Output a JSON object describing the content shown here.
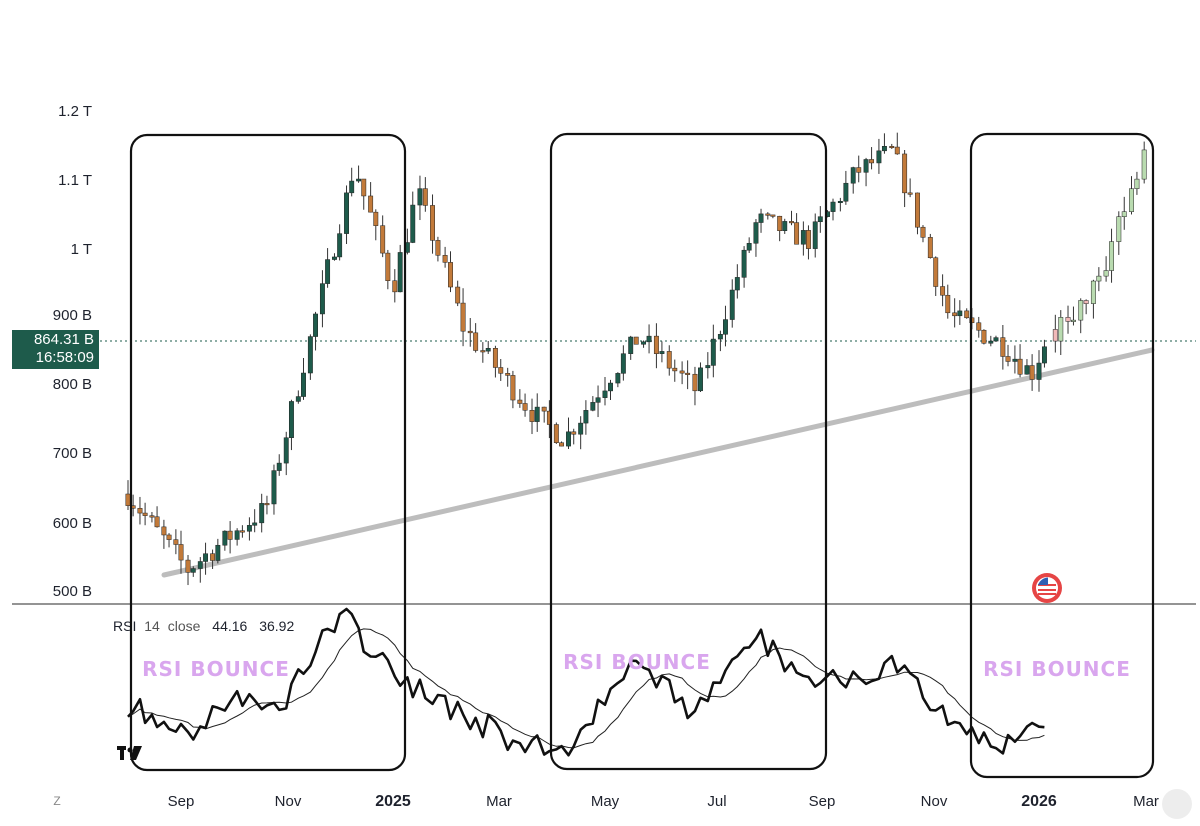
{
  "chart_data": [
    {
      "type": "candlestick",
      "symbol_price": "864.31 B",
      "countdown": "16:58:09",
      "y_ticks": [
        "500 B",
        "600 B",
        "700 B",
        "800 B",
        "900 B",
        "1 T",
        "1.1 T",
        "1.2 T"
      ],
      "y_tick_values": [
        500,
        600,
        700,
        800,
        900,
        1000,
        1100,
        1200
      ],
      "y_unit_note": "values in billions",
      "ylim": [
        500,
        1200
      ],
      "x_ticks": [
        "Sep",
        "Nov",
        "2025",
        "Mar",
        "May",
        "Jul",
        "Sep",
        "Nov",
        "2026",
        "Mar"
      ],
      "x_ticks_bold": [
        false,
        false,
        true,
        false,
        false,
        false,
        false,
        false,
        true,
        false
      ],
      "current_price": 864.31,
      "key_points": [
        {
          "date": "2024-08",
          "value": 640
        },
        {
          "date": "2024-09-05",
          "value": 530
        },
        {
          "date": "2024-10-20",
          "value": 620
        },
        {
          "date": "2024-12-10",
          "value": 1120
        },
        {
          "date": "2025-01-01",
          "value": 940
        },
        {
          "date": "2025-01-15",
          "value": 1080
        },
        {
          "date": "2025-02-10",
          "value": 880
        },
        {
          "date": "2025-03-20",
          "value": 760
        },
        {
          "date": "2025-04-08",
          "value": 720
        },
        {
          "date": "2025-05-20",
          "value": 870
        },
        {
          "date": "2025-06-20",
          "value": 790
        },
        {
          "date": "2025-07-25",
          "value": 1040
        },
        {
          "date": "2025-08-25",
          "value": 1010
        },
        {
          "date": "2025-09-20",
          "value": 1110
        },
        {
          "date": "2025-10-10",
          "value": 1140
        },
        {
          "date": "2025-11-10",
          "value": 900
        },
        {
          "date": "2025-12-10",
          "value": 860
        },
        {
          "date": "2025-12-28",
          "value": 815
        },
        {
          "date": "2026-01-05",
          "value": 864
        }
      ],
      "projection_points": [
        {
          "date": "2026-01-10",
          "value": 880
        },
        {
          "date": "2026-02-01",
          "value": 940
        },
        {
          "date": "2026-03-01",
          "value": 1140
        }
      ],
      "trendline": {
        "from": {
          "date": "2024-09-10",
          "value": 522
        },
        "to": {
          "date": "2026-03-01",
          "value": 850
        }
      },
      "colors": {
        "up": "#1e5b4b",
        "down": "#c27a3a",
        "projection_up": "#b9dbb0",
        "projection_down": "#f2b9b9",
        "trendline": "#bdbdbd"
      }
    },
    {
      "type": "line",
      "indicator": "RSI",
      "period_label": "RSI",
      "period": "14",
      "source": "close",
      "value_1": "44.16",
      "value_2": "36.92",
      "series_points": [
        {
          "date": "2024-08-01",
          "rsi": 50
        },
        {
          "date": "2024-09-05",
          "rsi": 35
        },
        {
          "date": "2024-10-01",
          "rsi": 55
        },
        {
          "date": "2024-10-25",
          "rsi": 45
        },
        {
          "date": "2024-11-20",
          "rsi": 82
        },
        {
          "date": "2024-12-05",
          "rsi": 90
        },
        {
          "date": "2025-01-05",
          "rsi": 60
        },
        {
          "date": "2025-02-10",
          "rsi": 45
        },
        {
          "date": "2025-03-15",
          "rsi": 30
        },
        {
          "date": "2025-04-08",
          "rsi": 28
        },
        {
          "date": "2025-05-15",
          "rsi": 70
        },
        {
          "date": "2025-06-20",
          "rsi": 45
        },
        {
          "date": "2025-07-25",
          "rsi": 82
        },
        {
          "date": "2025-08-25",
          "rsi": 60
        },
        {
          "date": "2025-10-10",
          "rsi": 68
        },
        {
          "date": "2025-11-10",
          "rsi": 40
        },
        {
          "date": "2025-12-10",
          "rsi": 28
        },
        {
          "date": "2026-01-05",
          "rsi": 44
        }
      ]
    }
  ],
  "annotations": {
    "bounce_labels": [
      "RSI BOUNCE",
      "RSI BOUNCE",
      "RSI BOUNCE"
    ]
  },
  "ui": {
    "z_button": "Z"
  }
}
